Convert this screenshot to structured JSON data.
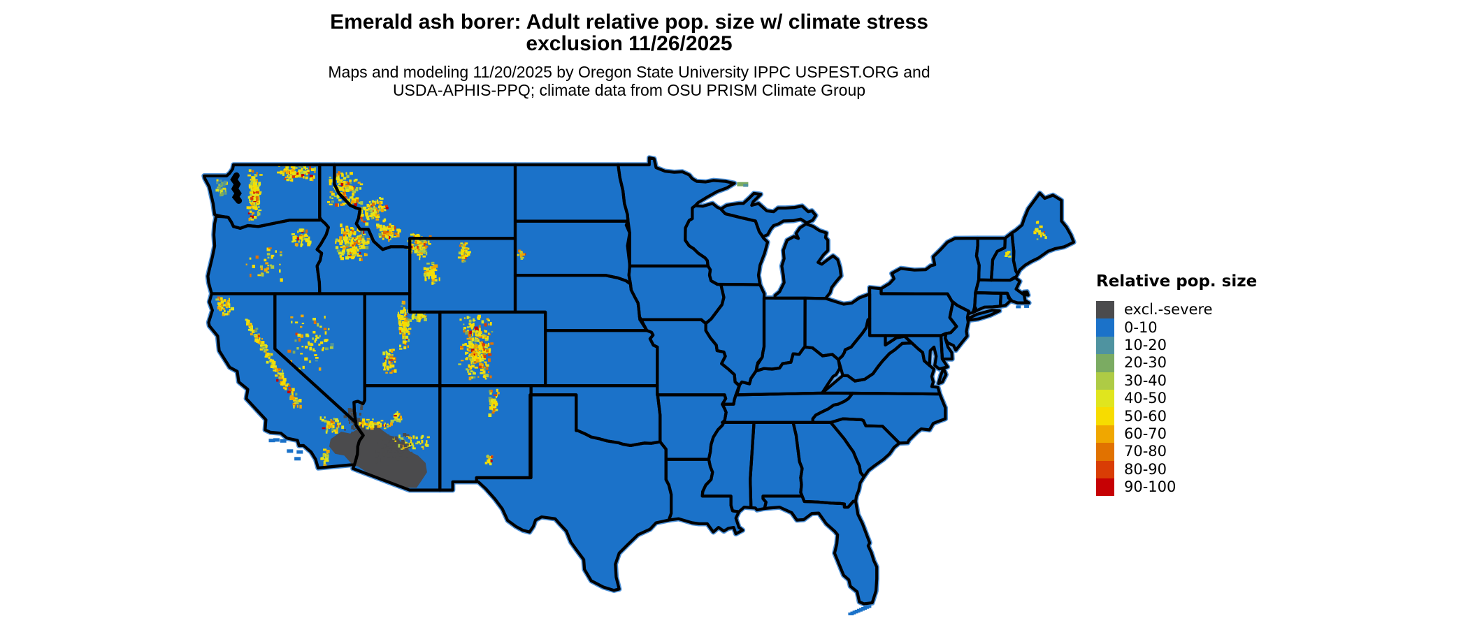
{
  "title": "Emerald ash borer: Adult relative pop. size w/ climate stress\nexclusion 11/26/2025",
  "subtitle": "Maps and modeling 11/20/2025 by Oregon State University IPPC USPEST.ORG and\nUSDA-APHIS-PPQ; climate data from OSU PRISM Climate Group",
  "legend": {
    "title": "Relative pop. size",
    "items": [
      {
        "label": "excl.-severe",
        "color": "#4b4b4d"
      },
      {
        "label": "0-10",
        "color": "#1b72c9"
      },
      {
        "label": "10-20",
        "color": "#4f93a0"
      },
      {
        "label": "20-30",
        "color": "#7bab62"
      },
      {
        "label": "30-40",
        "color": "#aecb45"
      },
      {
        "label": "40-50",
        "color": "#e0e51e"
      },
      {
        "label": "50-60",
        "color": "#f7dc00"
      },
      {
        "label": "60-70",
        "color": "#f0a700"
      },
      {
        "label": "70-80",
        "color": "#e17200"
      },
      {
        "label": "80-90",
        "color": "#d93d05"
      },
      {
        "label": "90-100",
        "color": "#c60104"
      }
    ]
  },
  "map": {
    "region": "Conterminous United States",
    "base_fill_bin": "0-10",
    "exclusion_bin": "excl.-severe",
    "border_color": "#000000",
    "coast_fringe_color": "#4e92d9"
  }
}
